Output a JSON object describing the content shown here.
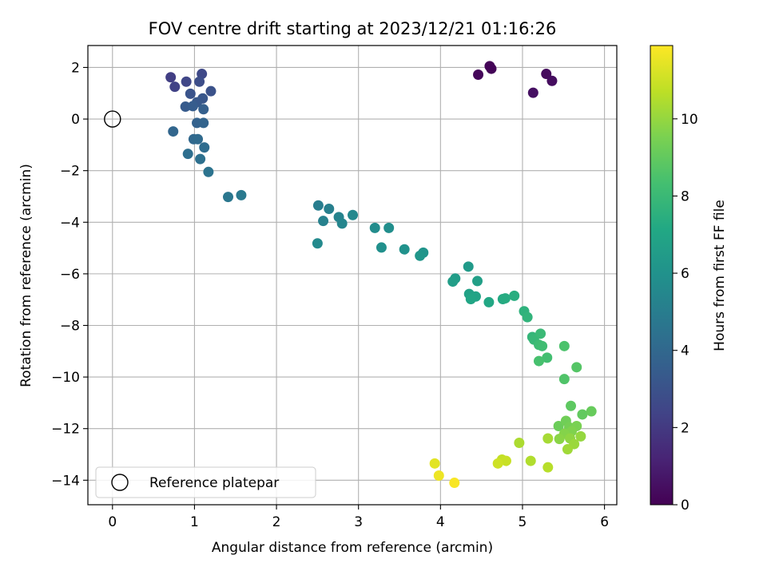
{
  "chart_data": {
    "type": "scatter",
    "title": "FOV centre drift starting at 2023/12/21 01:16:26",
    "xlabel": "Angular distance from reference (arcmin)",
    "ylabel": "Rotation from reference (arcmin)",
    "xlim": [
      -0.3,
      6.15
    ],
    "ylim": [
      -14.95,
      2.85
    ],
    "xticks": [
      0,
      1,
      2,
      3,
      4,
      5,
      6
    ],
    "yticks": [
      2,
      0,
      -2,
      -4,
      -6,
      -8,
      -10,
      -12,
      -14
    ],
    "grid": true,
    "legend": {
      "placement": "lower-left",
      "entries": [
        "Reference platepar"
      ]
    },
    "reference_point": {
      "x": 0,
      "y": 0
    },
    "colorbar": {
      "label": "Hours from first FF file",
      "range": [
        0,
        11.9
      ],
      "ticks": [
        0,
        2,
        4,
        6,
        8,
        10
      ],
      "colormap": "viridis"
    },
    "points": [
      {
        "x": 4.6,
        "y": 2.05,
        "c": 0.1
      },
      {
        "x": 4.62,
        "y": 1.95,
        "c": 0.1
      },
      {
        "x": 4.46,
        "y": 1.72,
        "c": 0.2
      },
      {
        "x": 5.29,
        "y": 1.75,
        "c": 0.3
      },
      {
        "x": 5.36,
        "y": 1.48,
        "c": 0.4
      },
      {
        "x": 5.13,
        "y": 1.02,
        "c": 0.5
      },
      {
        "x": 0.71,
        "y": 1.62,
        "c": 2.2
      },
      {
        "x": 0.76,
        "y": 1.25,
        "c": 2.3
      },
      {
        "x": 0.9,
        "y": 1.45,
        "c": 2.5
      },
      {
        "x": 1.09,
        "y": 1.75,
        "c": 2.6
      },
      {
        "x": 1.06,
        "y": 1.45,
        "c": 2.8
      },
      {
        "x": 1.2,
        "y": 1.08,
        "c": 3.0
      },
      {
        "x": 0.95,
        "y": 0.98,
        "c": 3.1
      },
      {
        "x": 1.1,
        "y": 0.8,
        "c": 3.2
      },
      {
        "x": 1.03,
        "y": 0.65,
        "c": 3.3
      },
      {
        "x": 0.89,
        "y": 0.48,
        "c": 3.4
      },
      {
        "x": 0.98,
        "y": 0.5,
        "c": 3.5
      },
      {
        "x": 1.11,
        "y": 0.38,
        "c": 3.6
      },
      {
        "x": 1.03,
        "y": -0.15,
        "c": 3.7
      },
      {
        "x": 1.11,
        "y": -0.15,
        "c": 3.8
      },
      {
        "x": 0.74,
        "y": -0.48,
        "c": 3.9
      },
      {
        "x": 0.99,
        "y": -0.78,
        "c": 4.0
      },
      {
        "x": 1.04,
        "y": -0.78,
        "c": 4.1
      },
      {
        "x": 1.12,
        "y": -1.1,
        "c": 4.2
      },
      {
        "x": 0.92,
        "y": -1.35,
        "c": 4.3
      },
      {
        "x": 1.07,
        "y": -1.55,
        "c": 4.4
      },
      {
        "x": 1.17,
        "y": -2.05,
        "c": 4.5
      },
      {
        "x": 1.41,
        "y": -3.02,
        "c": 4.7
      },
      {
        "x": 1.57,
        "y": -2.95,
        "c": 4.8
      },
      {
        "x": 2.51,
        "y": -3.35,
        "c": 5.0
      },
      {
        "x": 2.64,
        "y": -3.48,
        "c": 5.1
      },
      {
        "x": 2.57,
        "y": -3.95,
        "c": 5.2
      },
      {
        "x": 2.76,
        "y": -3.8,
        "c": 5.3
      },
      {
        "x": 2.8,
        "y": -4.05,
        "c": 5.4
      },
      {
        "x": 2.93,
        "y": -3.72,
        "c": 5.5
      },
      {
        "x": 2.5,
        "y": -4.82,
        "c": 5.6
      },
      {
        "x": 3.2,
        "y": -4.22,
        "c": 5.7
      },
      {
        "x": 3.37,
        "y": -4.22,
        "c": 5.8
      },
      {
        "x": 3.28,
        "y": -4.98,
        "c": 5.9
      },
      {
        "x": 3.56,
        "y": -5.05,
        "c": 6.0
      },
      {
        "x": 3.79,
        "y": -5.18,
        "c": 6.1
      },
      {
        "x": 3.75,
        "y": -5.3,
        "c": 6.2
      },
      {
        "x": 4.34,
        "y": -5.72,
        "c": 6.4
      },
      {
        "x": 4.18,
        "y": -6.18,
        "c": 6.5
      },
      {
        "x": 4.15,
        "y": -6.3,
        "c": 6.6
      },
      {
        "x": 4.45,
        "y": -6.28,
        "c": 6.7
      },
      {
        "x": 4.35,
        "y": -6.78,
        "c": 6.8
      },
      {
        "x": 4.43,
        "y": -6.88,
        "c": 6.9
      },
      {
        "x": 4.37,
        "y": -6.98,
        "c": 7.0
      },
      {
        "x": 4.59,
        "y": -7.1,
        "c": 7.1
      },
      {
        "x": 4.76,
        "y": -6.98,
        "c": 7.2
      },
      {
        "x": 4.79,
        "y": -6.95,
        "c": 7.3
      },
      {
        "x": 4.9,
        "y": -6.85,
        "c": 7.4
      },
      {
        "x": 5.02,
        "y": -7.45,
        "c": 7.6
      },
      {
        "x": 5.06,
        "y": -7.68,
        "c": 7.7
      },
      {
        "x": 5.12,
        "y": -8.45,
        "c": 7.8
      },
      {
        "x": 5.14,
        "y": -8.55,
        "c": 7.9
      },
      {
        "x": 5.22,
        "y": -8.32,
        "c": 8.0
      },
      {
        "x": 5.2,
        "y": -8.75,
        "c": 8.1
      },
      {
        "x": 5.24,
        "y": -8.8,
        "c": 8.2
      },
      {
        "x": 5.3,
        "y": -9.25,
        "c": 8.3
      },
      {
        "x": 5.2,
        "y": -9.38,
        "c": 8.4
      },
      {
        "x": 5.51,
        "y": -8.8,
        "c": 8.5
      },
      {
        "x": 5.51,
        "y": -10.08,
        "c": 8.6
      },
      {
        "x": 5.66,
        "y": -9.62,
        "c": 8.7
      },
      {
        "x": 5.59,
        "y": -11.12,
        "c": 8.9
      },
      {
        "x": 5.73,
        "y": -11.45,
        "c": 9.0
      },
      {
        "x": 5.84,
        "y": -11.33,
        "c": 9.1
      },
      {
        "x": 5.44,
        "y": -11.9,
        "c": 9.2
      },
      {
        "x": 5.53,
        "y": -11.7,
        "c": 9.3
      },
      {
        "x": 5.57,
        "y": -11.95,
        "c": 9.4
      },
      {
        "x": 5.66,
        "y": -11.9,
        "c": 9.5
      },
      {
        "x": 5.6,
        "y": -12.1,
        "c": 9.6
      },
      {
        "x": 5.51,
        "y": -12.2,
        "c": 9.7
      },
      {
        "x": 5.45,
        "y": -12.4,
        "c": 9.8
      },
      {
        "x": 5.58,
        "y": -12.38,
        "c": 9.9
      },
      {
        "x": 5.71,
        "y": -12.3,
        "c": 10.0
      },
      {
        "x": 5.63,
        "y": -12.6,
        "c": 10.1
      },
      {
        "x": 5.55,
        "y": -12.8,
        "c": 10.2
      },
      {
        "x": 5.31,
        "y": -12.38,
        "c": 10.3
      },
      {
        "x": 4.96,
        "y": -12.55,
        "c": 10.4
      },
      {
        "x": 5.1,
        "y": -13.25,
        "c": 10.5
      },
      {
        "x": 5.31,
        "y": -13.5,
        "c": 10.6
      },
      {
        "x": 4.75,
        "y": -13.2,
        "c": 10.8
      },
      {
        "x": 4.8,
        "y": -13.25,
        "c": 10.9
      },
      {
        "x": 4.7,
        "y": -13.35,
        "c": 11.0
      },
      {
        "x": 3.93,
        "y": -13.35,
        "c": 11.4
      },
      {
        "x": 3.98,
        "y": -13.82,
        "c": 11.6
      },
      {
        "x": 4.17,
        "y": -14.1,
        "c": 11.8
      }
    ]
  }
}
